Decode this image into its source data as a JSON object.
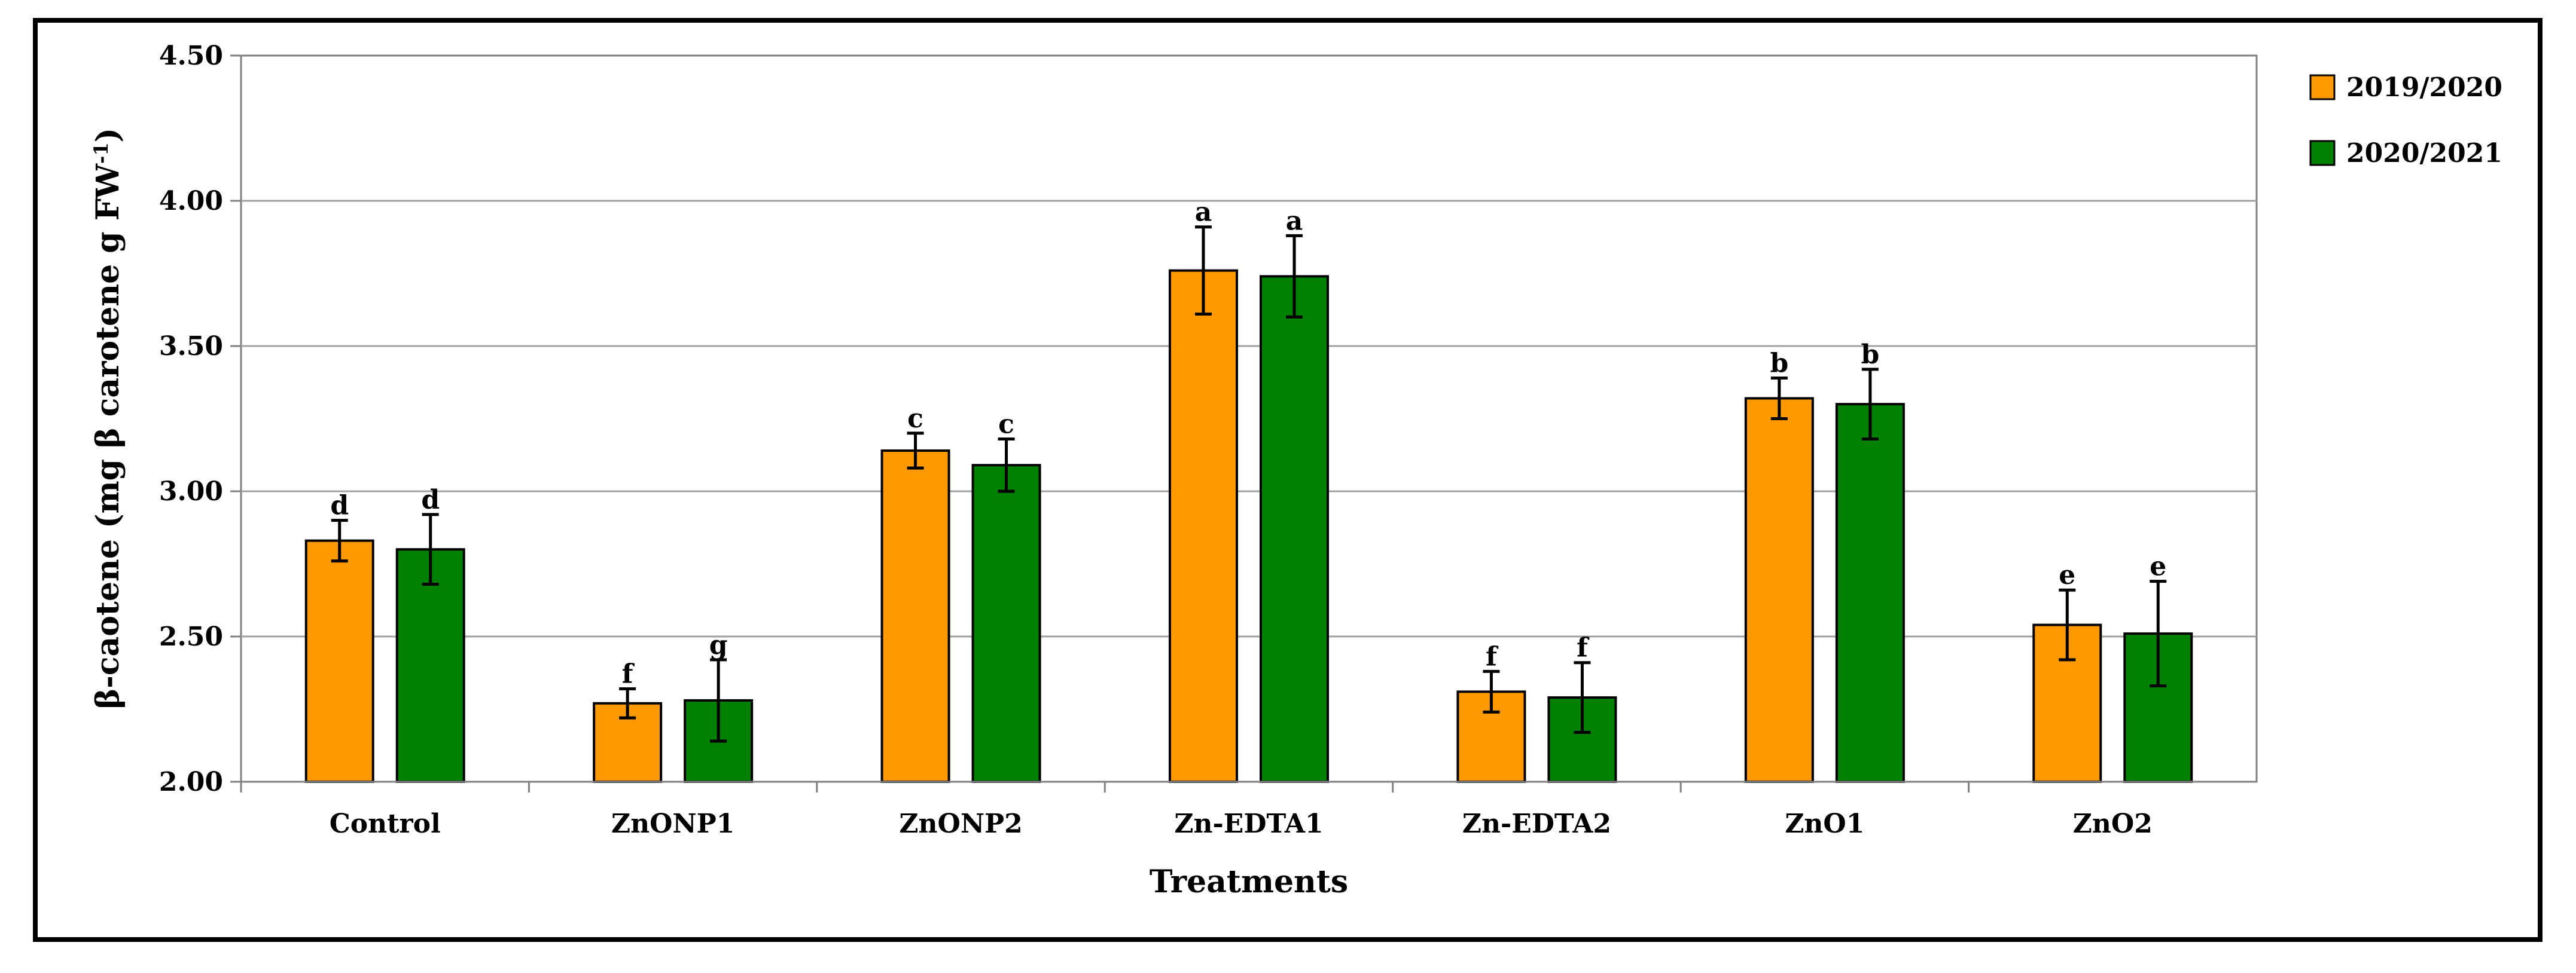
{
  "chart_data": {
    "type": "bar",
    "title": "",
    "xlabel": "Treatments",
    "ylabel_main": "β-caotene (mg β carotene g FW",
    "ylabel_sup": "-1",
    "ylabel_end": ")",
    "ylim": [
      2.0,
      4.5
    ],
    "yticks": [
      "2.00",
      "2.50",
      "3.00",
      "3.50",
      "4.00",
      "4.50"
    ],
    "ytick_values": [
      2.0,
      2.5,
      3.0,
      3.5,
      4.0,
      4.5
    ],
    "grid": true,
    "legend_position": "top-right",
    "categories": [
      "Control",
      "ZnONP1",
      "ZnONP2",
      "Zn-EDTA1",
      "Zn-EDTA2",
      "ZnO1",
      "ZnO2"
    ],
    "series": [
      {
        "name": "2019/2020",
        "color": "#ff9900",
        "values": [
          2.83,
          2.27,
          3.14,
          3.76,
          2.31,
          3.32,
          2.54
        ],
        "errors": [
          0.07,
          0.05,
          0.06,
          0.15,
          0.07,
          0.07,
          0.12
        ],
        "letters": [
          "d",
          "f",
          "c",
          "a",
          "f",
          "b",
          "e"
        ]
      },
      {
        "name": "2020/2021",
        "color": "#008000",
        "values": [
          2.8,
          2.28,
          3.09,
          3.74,
          2.29,
          3.3,
          2.51
        ],
        "errors": [
          0.12,
          0.14,
          0.09,
          0.14,
          0.12,
          0.12,
          0.18
        ],
        "letters": [
          "d",
          "g",
          "c",
          "a",
          "f",
          "b",
          "e"
        ]
      }
    ]
  }
}
